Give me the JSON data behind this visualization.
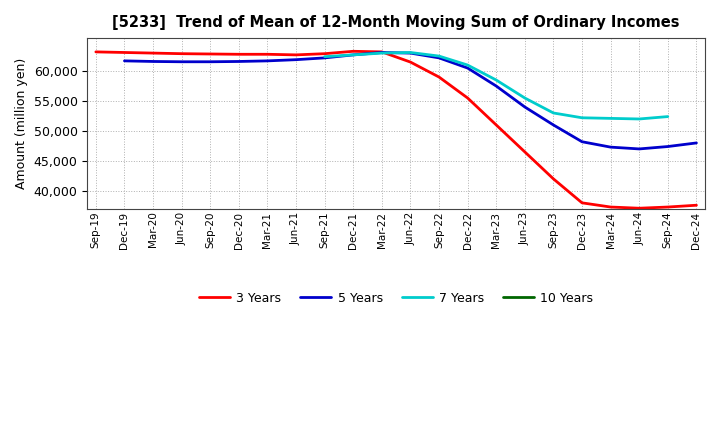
{
  "title": "[5233]  Trend of Mean of 12-Month Moving Sum of Ordinary Incomes",
  "ylabel": "Amount (million yen)",
  "background_color": "#ffffff",
  "grid_color": "#b0b0b0",
  "ylim": [
    37000,
    65500
  ],
  "yticks": [
    40000,
    45000,
    50000,
    55000,
    60000
  ],
  "legend": [
    "3 Years",
    "5 Years",
    "7 Years",
    "10 Years"
  ],
  "line_colors": [
    "#ff0000",
    "#0000cc",
    "#00cccc",
    "#006600"
  ],
  "x_labels": [
    "Sep-19",
    "Dec-19",
    "Mar-20",
    "Jun-20",
    "Sep-20",
    "Dec-20",
    "Mar-21",
    "Jun-21",
    "Sep-21",
    "Dec-21",
    "Mar-22",
    "Jun-22",
    "Sep-22",
    "Dec-22",
    "Mar-23",
    "Jun-23",
    "Sep-23",
    "Dec-23",
    "Mar-24",
    "Jun-24",
    "Sep-24",
    "Dec-24"
  ],
  "series_3yr": [
    63200,
    63100,
    63000,
    62900,
    62850,
    62800,
    62800,
    62700,
    62900,
    63300,
    63200,
    61500,
    59000,
    55500,
    51000,
    46500,
    42000,
    38000,
    37300,
    37100,
    37300,
    37600
  ],
  "series_5yr": [
    null,
    61700,
    61600,
    61550,
    61550,
    61600,
    61700,
    61900,
    62200,
    62700,
    63100,
    63000,
    62200,
    60500,
    57500,
    54000,
    51000,
    48200,
    47300,
    47000,
    47400,
    48000
  ],
  "series_7yr": [
    null,
    null,
    null,
    null,
    null,
    null,
    null,
    null,
    62400,
    62700,
    63000,
    63100,
    62500,
    61000,
    58500,
    55500,
    53000,
    52200,
    52100,
    52000,
    52400,
    null
  ],
  "series_10yr": [
    null,
    null,
    null,
    null,
    null,
    null,
    null,
    null,
    null,
    null,
    null,
    null,
    null,
    null,
    null,
    null,
    null,
    null,
    null,
    null,
    null,
    null
  ]
}
